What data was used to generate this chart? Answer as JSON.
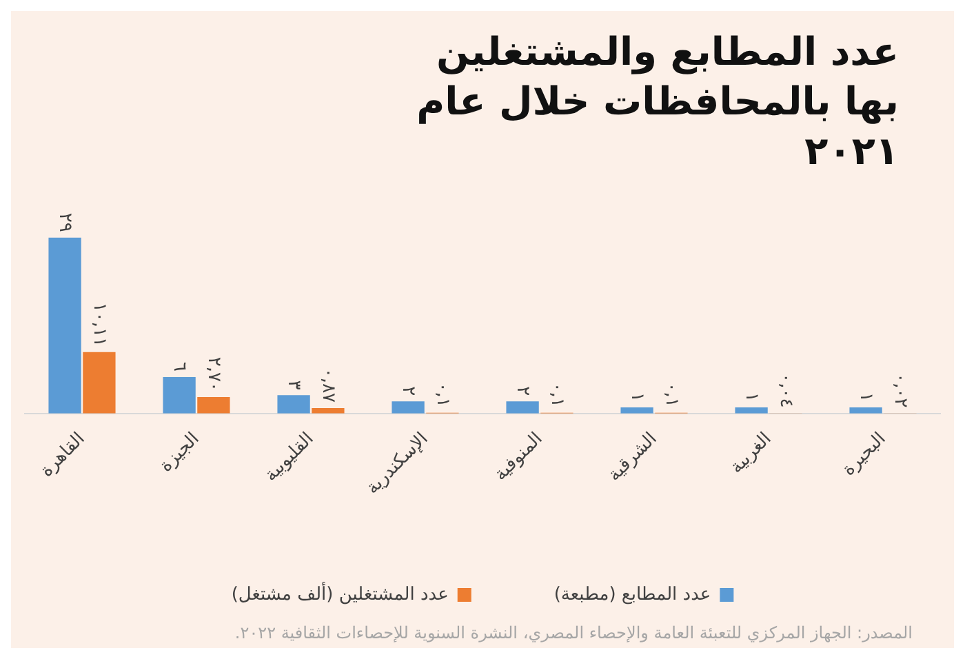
{
  "chart_data": {
    "type": "bar",
    "title": "عدد المطابع والمشتغلين بها بالمحافظات خلال عام ٢٠٢١",
    "categories": [
      "القاهرة",
      "الجيزة",
      "القليوبية",
      "الإسكندرية",
      "المنوفية",
      "الشرقية",
      "الغربية",
      "البحيرة"
    ],
    "series": [
      {
        "name": "عدد المطابع (مطبعة)",
        "color": "#5b9bd5",
        "values": [
          29,
          6,
          3,
          2,
          2,
          1,
          1,
          1
        ],
        "value_labels": [
          "٢٩",
          "٦",
          "٣",
          "٢",
          "٢",
          "١",
          "١",
          "١"
        ]
      },
      {
        "name": "عدد المشتغلين (ألف مشتغل)",
        "color": "#ed7d31",
        "values": [
          10.11,
          2.7,
          0.87,
          0.1,
          0.1,
          0.1,
          0.04,
          0.02
        ],
        "value_labels": [
          "١٠,١١",
          "٢,٧٠",
          "٠,٨٧",
          "٠,١",
          "٠,١",
          "٠,١",
          "٠,٠٤",
          "٠,٠٢"
        ]
      }
    ],
    "legend": "bottom",
    "tick_labels": "x",
    "grid": false,
    "annotations": [
      "المصدر: الجهاز المركزي للتعبئة العامة والإحصاء المصري، النشرة السنوية للإحصاءات الثقافية ٢٠٢٢."
    ]
  }
}
